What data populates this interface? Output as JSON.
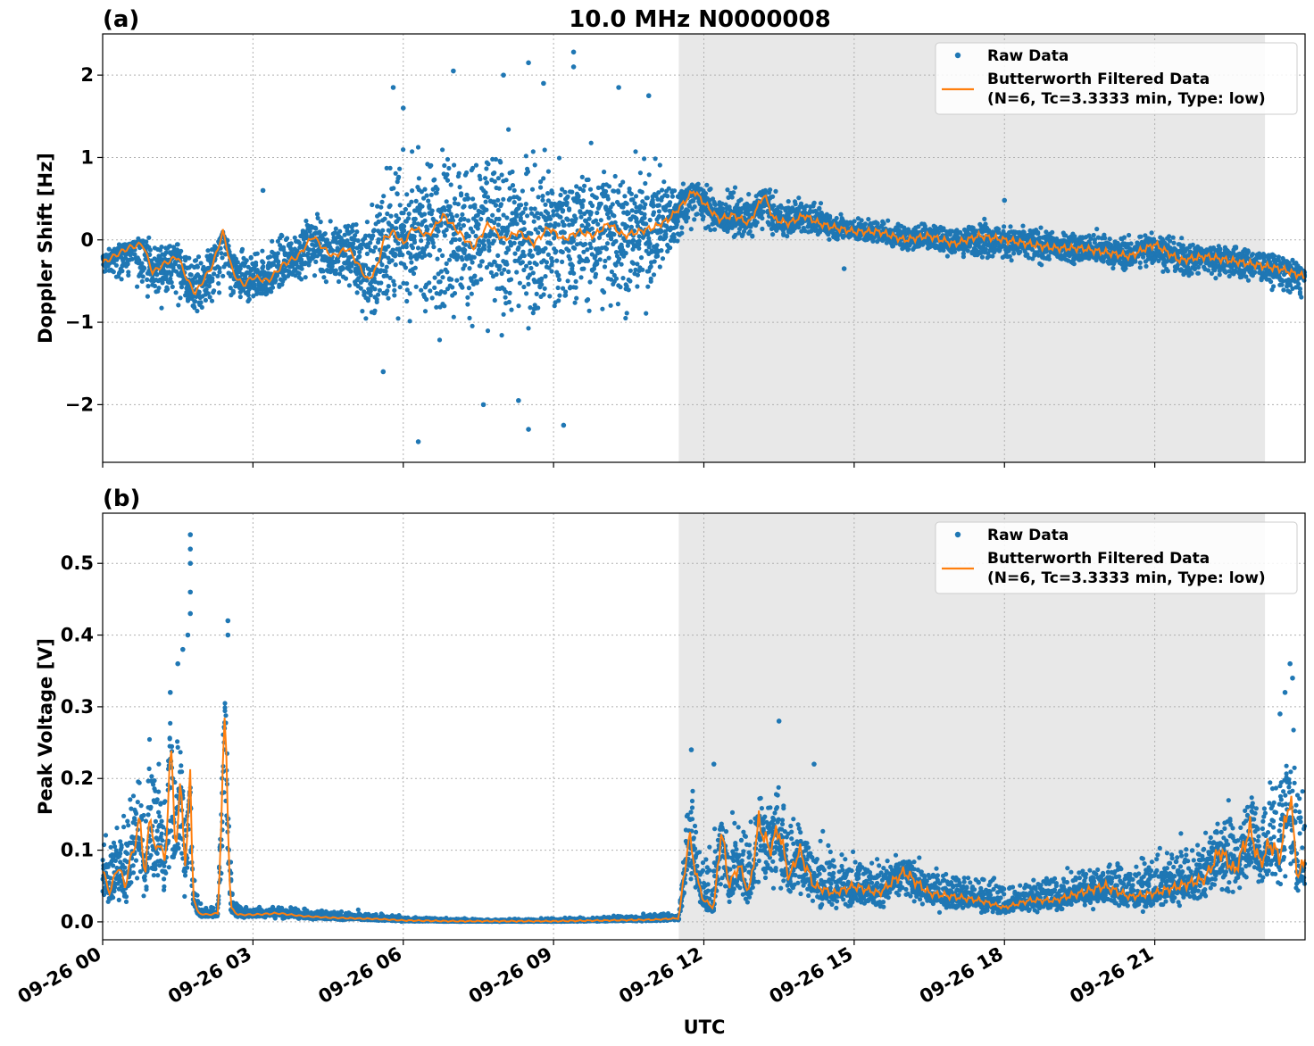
{
  "figure": {
    "title": "10.0 MHz N0000008",
    "xlabel": "UTC",
    "x_tick_labels": [
      "09-26 00",
      "09-26 03",
      "09-26 06",
      "09-26 09",
      "09-26 12",
      "09-26 15",
      "09-26 18",
      "09-26 21"
    ],
    "shaded_band_hours": [
      11.5,
      23.2
    ],
    "colors": {
      "raw": "#1f77b4",
      "filtered": "#ff7f0e",
      "shade": "#e8e8e8",
      "grid": "#b0b0b0"
    }
  },
  "chart_data": [
    {
      "type": "scatter",
      "panel_label": "(a)",
      "ylabel": "Doppler Shift [Hz]",
      "xlim_hours": [
        0,
        24
      ],
      "ylim": [
        -2.7,
        2.5
      ],
      "y_ticks": [
        -2,
        -1,
        0,
        1,
        2
      ],
      "y_tick_labels": [
        "−2",
        "−1",
        "0",
        "1",
        "2"
      ],
      "grid": true,
      "legend_position": "top-right",
      "legend": [
        "Raw Data",
        "Butterworth Filtered Data",
        "(N=6, Tc=3.3333 min, Type: low)"
      ],
      "series": [
        {
          "name": "Butterworth Filtered Data",
          "kind": "line",
          "x_hours": [
            0,
            0.5,
            0.8,
            1.0,
            1.2,
            1.5,
            1.7,
            1.85,
            2.0,
            2.2,
            2.4,
            2.6,
            2.8,
            3.0,
            3.3,
            3.6,
            3.9,
            4.2,
            4.4,
            4.6,
            4.9,
            5.1,
            5.3,
            5.5,
            5.6,
            5.8,
            6.0,
            6.2,
            6.5,
            6.8,
            7.1,
            7.4,
            7.7,
            8.0,
            8.3,
            8.6,
            8.9,
            9.2,
            9.5,
            9.8,
            10.1,
            10.4,
            10.7,
            11.0,
            11.3,
            11.6,
            11.8,
            12.0,
            12.3,
            12.6,
            12.9,
            13.2,
            13.4,
            13.7,
            14.0,
            14.3,
            14.6,
            15.0,
            15.5,
            16.0,
            16.5,
            17.0,
            17.5,
            18.0,
            18.5,
            19.0,
            19.5,
            20.0,
            20.5,
            21.0,
            21.5,
            22.0,
            22.5,
            23.0,
            23.5,
            24.0
          ],
          "y": [
            -0.28,
            -0.1,
            -0.05,
            -0.4,
            -0.3,
            -0.2,
            -0.5,
            -0.65,
            -0.5,
            -0.3,
            0.1,
            -0.4,
            -0.55,
            -0.45,
            -0.5,
            -0.3,
            -0.2,
            0.05,
            -0.1,
            -0.2,
            -0.1,
            -0.3,
            -0.5,
            -0.3,
            0.0,
            0.1,
            -0.05,
            0.15,
            0.05,
            0.3,
            0.1,
            -0.1,
            0.2,
            0.0,
            0.1,
            -0.05,
            0.15,
            0.0,
            0.1,
            0.05,
            0.2,
            0.05,
            0.1,
            0.15,
            0.25,
            0.45,
            0.6,
            0.45,
            0.25,
            0.3,
            0.2,
            0.55,
            0.25,
            0.2,
            0.3,
            0.2,
            0.15,
            0.1,
            0.1,
            0.0,
            0.05,
            -0.05,
            0.05,
            0.0,
            -0.05,
            -0.1,
            -0.1,
            -0.15,
            -0.2,
            -0.05,
            -0.25,
            -0.2,
            -0.25,
            -0.3,
            -0.35,
            -0.45
          ]
        },
        {
          "name": "Raw Data",
          "kind": "scatter-band",
          "x_hours": [
            0,
            1,
            2,
            3,
            4,
            5,
            5.6,
            6,
            7,
            8,
            9,
            10,
            11,
            11.6,
            12,
            13,
            14,
            15,
            16,
            17,
            18,
            19,
            20,
            21,
            22,
            23,
            24
          ],
          "band_low": [
            -0.5,
            -0.9,
            -1.1,
            -0.9,
            -0.6,
            -0.9,
            -1.5,
            -1.4,
            -1.5,
            -1.6,
            -1.5,
            -1.4,
            -1.2,
            -0.1,
            0.0,
            -0.1,
            0.0,
            -0.1,
            -0.2,
            -0.3,
            -0.4,
            -0.4,
            -0.4,
            -0.5,
            -0.6,
            -0.6,
            -0.9
          ],
          "band_high": [
            -0.05,
            0.1,
            0.0,
            0.1,
            0.4,
            0.5,
            1.4,
            1.5,
            1.6,
            1.7,
            1.6,
            1.5,
            1.3,
            0.9,
            0.8,
            0.7,
            0.6,
            0.4,
            0.3,
            0.3,
            0.3,
            0.2,
            0.2,
            0.2,
            0.1,
            0.0,
            -0.2
          ],
          "outliers": [
            [
              6.3,
              -2.45
            ],
            [
              8.5,
              -2.3
            ],
            [
              9.2,
              -2.25
            ],
            [
              9.4,
              2.28
            ],
            [
              9.4,
              2.1
            ],
            [
              8.5,
              2.15
            ],
            [
              7.0,
              2.05
            ],
            [
              8.0,
              2.0
            ],
            [
              5.8,
              1.85
            ],
            [
              10.3,
              1.85
            ],
            [
              6.0,
              1.6
            ],
            [
              8.8,
              1.9
            ],
            [
              10.9,
              1.75
            ],
            [
              7.6,
              -2.0
            ],
            [
              5.6,
              -1.6
            ],
            [
              8.3,
              -1.95
            ],
            [
              3.2,
              0.6
            ],
            [
              14.8,
              -0.35
            ],
            [
              18.0,
              0.48
            ]
          ]
        }
      ]
    },
    {
      "type": "scatter",
      "panel_label": "(b)",
      "ylabel": "Peak Voltage [V]",
      "xlim_hours": [
        0,
        24
      ],
      "ylim": [
        -0.025,
        0.57
      ],
      "y_ticks": [
        0.0,
        0.1,
        0.2,
        0.3,
        0.4,
        0.5
      ],
      "y_tick_labels": [
        "0.0",
        "0.1",
        "0.2",
        "0.3",
        "0.4",
        "0.5"
      ],
      "grid": true,
      "legend_position": "top-right",
      "legend": [
        "Raw Data",
        "Butterworth Filtered Data",
        "(N=6, Tc=3.3333 min, Type: low)"
      ],
      "series": [
        {
          "name": "Butterworth Filtered Data",
          "kind": "line",
          "x_hours": [
            0,
            0.15,
            0.3,
            0.45,
            0.6,
            0.75,
            0.85,
            0.95,
            1.05,
            1.15,
            1.25,
            1.35,
            1.45,
            1.55,
            1.65,
            1.75,
            1.8,
            1.9,
            2.1,
            2.3,
            2.45,
            2.5,
            2.55,
            2.7,
            3.0,
            3.5,
            4.0,
            4.5,
            5.0,
            5.5,
            6.0,
            7.0,
            8.0,
            9.0,
            10.0,
            11.0,
            11.5,
            11.7,
            11.9,
            12.0,
            12.2,
            12.35,
            12.5,
            12.7,
            12.9,
            13.1,
            13.3,
            13.5,
            13.7,
            13.9,
            14.2,
            14.6,
            15.0,
            15.5,
            16.0,
            16.5,
            17.0,
            17.5,
            18.0,
            18.5,
            19.0,
            19.5,
            20.0,
            20.5,
            21.0,
            21.5,
            22.0,
            22.3,
            22.6,
            22.9,
            23.1,
            23.3,
            23.5,
            23.7,
            23.85,
            24.0
          ],
          "y": [
            0.07,
            0.04,
            0.08,
            0.05,
            0.1,
            0.14,
            0.06,
            0.16,
            0.09,
            0.12,
            0.07,
            0.26,
            0.1,
            0.19,
            0.08,
            0.2,
            0.04,
            0.012,
            0.01,
            0.012,
            0.3,
            0.15,
            0.02,
            0.01,
            0.01,
            0.012,
            0.008,
            0.006,
            0.005,
            0.004,
            0.002,
            0.001,
            0.001,
            0.001,
            0.002,
            0.003,
            0.005,
            0.12,
            0.05,
            0.03,
            0.02,
            0.13,
            0.05,
            0.08,
            0.04,
            0.14,
            0.1,
            0.13,
            0.06,
            0.1,
            0.05,
            0.04,
            0.05,
            0.04,
            0.07,
            0.04,
            0.035,
            0.03,
            0.02,
            0.03,
            0.03,
            0.04,
            0.05,
            0.035,
            0.04,
            0.05,
            0.06,
            0.1,
            0.07,
            0.13,
            0.08,
            0.11,
            0.09,
            0.18,
            0.06,
            0.09
          ]
        },
        {
          "name": "Raw Data",
          "kind": "scatter-band",
          "x_hours": [
            0,
            0.4,
            0.8,
            1.2,
            1.6,
            1.8,
            2.0,
            2.3,
            2.45,
            2.6,
            3.0,
            4.0,
            5.0,
            6.0,
            8.0,
            10.0,
            11.0,
            11.5,
            11.7,
            12.0,
            12.5,
            13.0,
            13.5,
            14.0,
            14.5,
            15.0,
            16.0,
            17.0,
            18.0,
            19.0,
            20.0,
            21.0,
            22.0,
            22.5,
            23.0,
            23.5,
            24.0
          ],
          "band_low": [
            0.02,
            0.01,
            0.01,
            0.02,
            0.02,
            0.005,
            0.003,
            0.004,
            0.02,
            0.004,
            0.004,
            0.002,
            0.001,
            0.0,
            0.0,
            0.0,
            0.0,
            0.0,
            0.03,
            0.01,
            0.01,
            0.01,
            0.02,
            0.01,
            0.01,
            0.01,
            0.01,
            0.01,
            0.005,
            0.01,
            0.01,
            0.01,
            0.02,
            0.02,
            0.02,
            0.03,
            0.03
          ],
          "band_high": [
            0.13,
            0.2,
            0.28,
            0.3,
            0.3,
            0.08,
            0.03,
            0.03,
            0.4,
            0.04,
            0.03,
            0.025,
            0.02,
            0.01,
            0.005,
            0.01,
            0.015,
            0.02,
            0.24,
            0.15,
            0.18,
            0.2,
            0.22,
            0.18,
            0.14,
            0.12,
            0.1,
            0.09,
            0.08,
            0.08,
            0.1,
            0.12,
            0.16,
            0.2,
            0.23,
            0.3,
            0.35
          ],
          "outliers": [
            [
              1.75,
              0.54
            ],
            [
              1.75,
              0.52
            ],
            [
              1.75,
              0.5
            ],
            [
              1.75,
              0.46
            ],
            [
              1.75,
              0.43
            ],
            [
              2.5,
              0.42
            ],
            [
              2.5,
              0.4
            ],
            [
              1.5,
              0.36
            ],
            [
              1.6,
              0.38
            ],
            [
              1.7,
              0.4
            ],
            [
              1.35,
              0.32
            ],
            [
              13.5,
              0.28
            ],
            [
              11.75,
              0.24
            ],
            [
              23.7,
              0.36
            ],
            [
              23.75,
              0.34
            ],
            [
              23.5,
              0.29
            ],
            [
              23.6,
              0.32
            ],
            [
              14.2,
              0.22
            ],
            [
              12.2,
              0.22
            ]
          ]
        }
      ]
    }
  ]
}
